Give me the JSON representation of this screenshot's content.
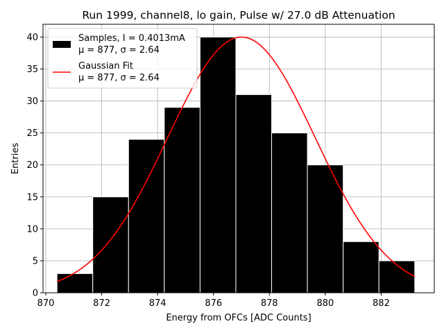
{
  "chart_data": {
    "type": "bar",
    "title": "Run 1999, channel8, lo gain, Pulse w/ 27.0 dB Attenuation",
    "xlabel": "Energy from OFCs [ADC Counts]",
    "ylabel": "Entries",
    "xlim": [
      869.9,
      883.9
    ],
    "ylim": [
      0,
      42
    ],
    "xticks": [
      870,
      872,
      874,
      876,
      878,
      880,
      882
    ],
    "yticks": [
      0,
      5,
      10,
      15,
      20,
      25,
      30,
      35,
      40
    ],
    "grid": true,
    "bins": {
      "edges": [
        870.4,
        871.68,
        872.96,
        874.24,
        875.52,
        876.8,
        878.08,
        879.36,
        880.64,
        881.92,
        883.2
      ],
      "counts": [
        3,
        15,
        24,
        29,
        40,
        31,
        25,
        20,
        8,
        5
      ]
    },
    "fit": {
      "name": "Gaussian Fit",
      "amplitude": 40,
      "mu": 877,
      "sigma": 2.64,
      "x_range": [
        870.4,
        883.2
      ],
      "color": "#ff0000"
    },
    "legend": {
      "position": "top-left",
      "entries": [
        {
          "kind": "patch",
          "color": "#000000",
          "line1": "Samples, I = 0.4013mA",
          "line2": "μ = 877, σ = 2.64"
        },
        {
          "kind": "line",
          "color": "#ff0000",
          "line1": "Gaussian Fit",
          "line2": "μ = 877, σ = 2.64"
        }
      ]
    }
  }
}
